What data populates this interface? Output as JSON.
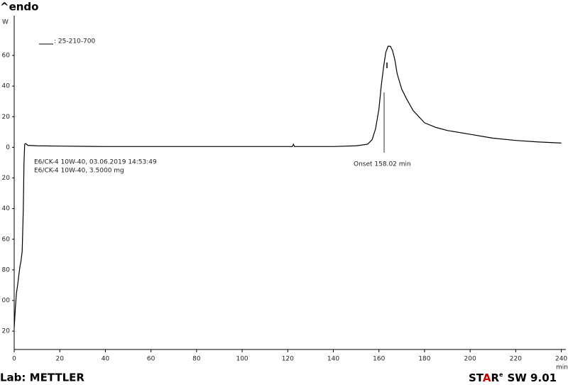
{
  "chart_data": {
    "type": "line",
    "title": "^endo",
    "y_unit": "W",
    "x_unit": "min",
    "legend_label": ": 25-210-700",
    "annotations": [
      "E6/CK-4 10W-40, 03.06.2019 14:53:49",
      "E6/CK-4 10W-40, 3.5000 mg"
    ],
    "onset_label": "Onset  158.02 min",
    "footer_left": "Lab: METTLER",
    "footer_star_1": "ST",
    "footer_star_2": "A",
    "footer_star_3": "R",
    "footer_star_sup": "e",
    "footer_version": "SW 9.01",
    "color": "#000000",
    "xlim": [
      0,
      242
    ],
    "ylim": [
      -132,
      86
    ],
    "xticks": [
      0,
      20,
      40,
      60,
      80,
      100,
      120,
      140,
      160,
      180,
      200,
      220,
      240
    ],
    "yticks": [
      {
        "value": 60,
        "label": "60"
      },
      {
        "value": 40,
        "label": "40"
      },
      {
        "value": 20,
        "label": "20"
      },
      0,
      {
        "value": -20,
        "label": "20"
      },
      {
        "value": -40,
        "label": "40"
      },
      {
        "value": -60,
        "label": "60"
      },
      {
        "value": -80,
        "label": "80"
      },
      {
        "value": -100,
        "label": "00"
      },
      {
        "value": -120,
        "label": "20"
      }
    ],
    "series": [
      {
        "name": "25-210-700",
        "color": "#000000",
        "x": [
          0,
          0.5,
          1,
          1.5,
          2,
          2.5,
          3,
          3.5,
          4,
          4.3,
          4.6,
          5,
          6,
          10,
          20,
          40,
          60,
          80,
          100,
          120,
          122,
          122.5,
          123,
          140,
          150,
          155,
          157,
          158.5,
          160,
          161,
          162,
          163,
          164,
          165,
          166,
          167,
          168,
          170,
          172,
          175,
          180,
          185,
          190,
          200,
          210,
          220,
          230,
          240
        ],
        "values": [
          -118,
          -105,
          -95,
          -90,
          -84,
          -78,
          -74,
          -68,
          -40,
          -10,
          2,
          2.5,
          1.3,
          1,
          0.8,
          0.5,
          0.5,
          0.5,
          0.5,
          0.5,
          0.5,
          2,
          0.5,
          0.5,
          1,
          2,
          5,
          12,
          25,
          40,
          52,
          62,
          66,
          66,
          63,
          57,
          48,
          38,
          32,
          24,
          16,
          13,
          11,
          8.5,
          6,
          4.5,
          3.5,
          2.8
        ]
      }
    ]
  }
}
